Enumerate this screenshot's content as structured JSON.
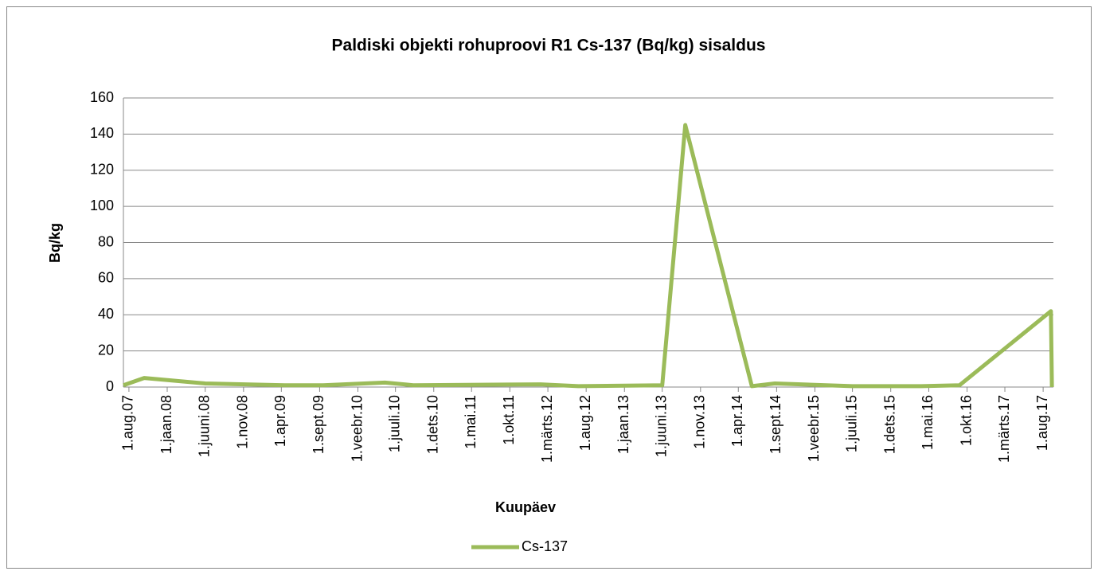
{
  "chart_data": {
    "type": "line",
    "title": "Paldiski objekti rohuproovi R1 Cs-137 (Bq/kg) sisaldus",
    "x_label": "Kuupäev",
    "y_label": "Bq/kg",
    "x": [
      "2007-07-10",
      "2007-10-01",
      "2008-06-01",
      "2009-04-15",
      "2009-09-15",
      "2010-05-20",
      "2010-09-10",
      "2012-02-01",
      "2012-07-01",
      "2013-06-01",
      "2013-09-01",
      "2014-05-25",
      "2014-08-25",
      "2015-07-01",
      "2016-04-01",
      "2016-09-01",
      "2017-09-01",
      "2017-09-05"
    ],
    "series": [
      {
        "name": "Cs-137",
        "color": "#9bbb59",
        "values": [
          1,
          5,
          2,
          1,
          1,
          2.5,
          1,
          1.5,
          0.5,
          1,
          145,
          0.5,
          2,
          0.5,
          0.5,
          1,
          42,
          0
        ]
      }
    ],
    "xlim": [
      "2007-07-10",
      "2017-09-11"
    ],
    "xticks": [
      {
        "value": "2007-08-01",
        "label": "1.aug.07"
      },
      {
        "value": "2008-01-01",
        "label": "1.jaan.08"
      },
      {
        "value": "2008-06-01",
        "label": "1.juuni.08"
      },
      {
        "value": "2008-11-01",
        "label": "1.nov.08"
      },
      {
        "value": "2009-04-01",
        "label": "1.apr.09"
      },
      {
        "value": "2009-09-01",
        "label": "1.sept.09"
      },
      {
        "value": "2010-02-01",
        "label": "1.veebr.10"
      },
      {
        "value": "2010-07-01",
        "label": "1.juuli.10"
      },
      {
        "value": "2010-12-01",
        "label": "1.dets.10"
      },
      {
        "value": "2011-05-01",
        "label": "1.mai.11"
      },
      {
        "value": "2011-10-01",
        "label": "1.okt.11"
      },
      {
        "value": "2012-03-01",
        "label": "1.märts.12"
      },
      {
        "value": "2012-08-01",
        "label": "1.aug.12"
      },
      {
        "value": "2013-01-01",
        "label": "1.jaan.13"
      },
      {
        "value": "2013-06-01",
        "label": "1.juuni.13"
      },
      {
        "value": "2013-11-01",
        "label": "1.nov.13"
      },
      {
        "value": "2014-04-01",
        "label": "1.apr.14"
      },
      {
        "value": "2014-09-01",
        "label": "1.sept.14"
      },
      {
        "value": "2015-02-01",
        "label": "1.veebr.15"
      },
      {
        "value": "2015-07-01",
        "label": "1.juuli.15"
      },
      {
        "value": "2015-12-01",
        "label": "1.dets.15"
      },
      {
        "value": "2016-05-01",
        "label": "1.mai.16"
      },
      {
        "value": "2016-10-01",
        "label": "1.okt.16"
      },
      {
        "value": "2017-03-01",
        "label": "1.märts.17"
      },
      {
        "value": "2017-08-01",
        "label": "1.aug.17"
      }
    ],
    "ylim": [
      0,
      160
    ],
    "yticks": [
      0,
      20,
      40,
      60,
      80,
      100,
      120,
      140,
      160
    ],
    "grid": true,
    "legend": "bottom"
  }
}
